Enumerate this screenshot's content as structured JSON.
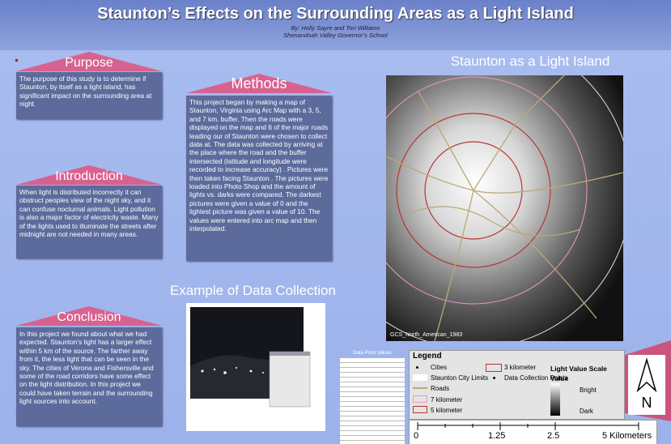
{
  "header": {
    "title": "Staunton’s Effects on the Surrounding Areas as a Light Island",
    "authors": "By: Holly Sayre and Tori Williams",
    "school": "Shenandoah Valley Governor’s School"
  },
  "sections": {
    "purpose": {
      "heading": "Purpose",
      "text": "The purpose of this study is to determine if Staunton, by itself as a light island, has significant impact on the surrounding area at night."
    },
    "methods": {
      "heading": "Methods",
      "text": "This project began  by making a map of Staunton, Virginia using Arc Map with a 3, 5, and 7 km. buffer. Then the roads were displayed on the map and 6 of the major roads leading our of Staunton were chosen to collect data at. The data was collected by arriving at the place where the road and the buffer intersected (latitude and longitude were recorded to increase accuracy) . Pictures were then taken facing Staunton . The pictures were loaded into Photo Shop and the amount of lights vs. darks were compared.  The darkest pictures were given a value of 0 and the lightest picture was given a value of 10. The values were entered into arc map and then interpolated."
    },
    "introduction": {
      "heading": "Introduction",
      "text": "When light is distributed incorrectly it can obstruct peoples view of the night sky, and it can confuse nocturnal animals. Light pollution is also a major factor of electricity waste. Many of the lights used to illuminate the streets after midnight are not needed in many areas."
    },
    "conclusion": {
      "heading": "Conclusion",
      "text": "In this project we found about what we had expected. Staunton's light has a larger effect within 5 km of the source. The farther away from it, the less light that can be seen in the sky. The cities of Verona and Fishersville and some of the road corridors have some effect on the light distribution. In this project we could have taken terrain and the surrounding light sources into account."
    }
  },
  "example": {
    "heading": "Example of Data Collection"
  },
  "map": {
    "heading": "Staunton as a Light Island",
    "projection": "GCS_North_American_1983"
  },
  "data_table": {
    "caption": "Data Point Values"
  },
  "legend": {
    "title": "Legend",
    "cities": "Cities",
    "km3": "3 kilometer",
    "scale_title": "Light Value Scale",
    "city_limits": "Staunton City Limits",
    "points": "Data Collection Points",
    "value": "Value",
    "roads": "Roads",
    "bright": "Bright",
    "km7": "7 kilometer",
    "km5": "5 kilometer",
    "dark": "Dark"
  },
  "scale_bar": {
    "labels": [
      "0",
      "1.25",
      "2.5",
      "5 Kilometers"
    ]
  },
  "north": "N"
}
